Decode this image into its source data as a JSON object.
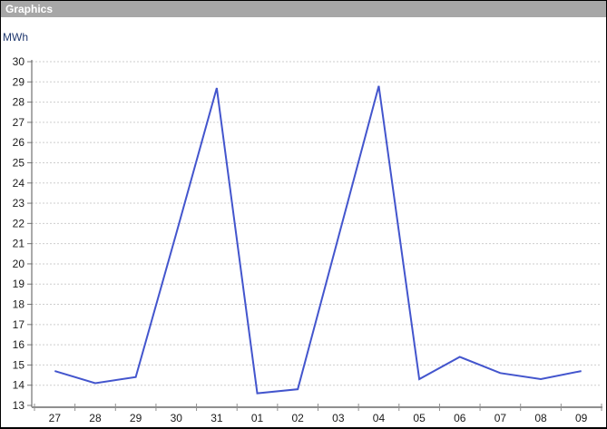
{
  "window": {
    "title": "Graphics"
  },
  "chart_data": {
    "type": "line",
    "title": "",
    "ylabel": "MWh",
    "xlabel": "",
    "categories": [
      "27",
      "28",
      "29",
      "30",
      "31",
      "01",
      "02",
      "03",
      "04",
      "05",
      "06",
      "07",
      "08",
      "09"
    ],
    "values": [
      14.7,
      14.1,
      14.4,
      21.5,
      28.7,
      13.6,
      13.8,
      21.3,
      28.8,
      14.3,
      15.4,
      14.6,
      14.3,
      14.7
    ],
    "ylim": [
      13,
      30
    ],
    "ytick_step": 1,
    "grid": "dotted-horizontal",
    "legend": "none",
    "line_color": "#4355cd",
    "grid_color": "#cdcdcd",
    "axis_color": "#8f8f8f",
    "tick_label_color": "#1a1a1a"
  }
}
